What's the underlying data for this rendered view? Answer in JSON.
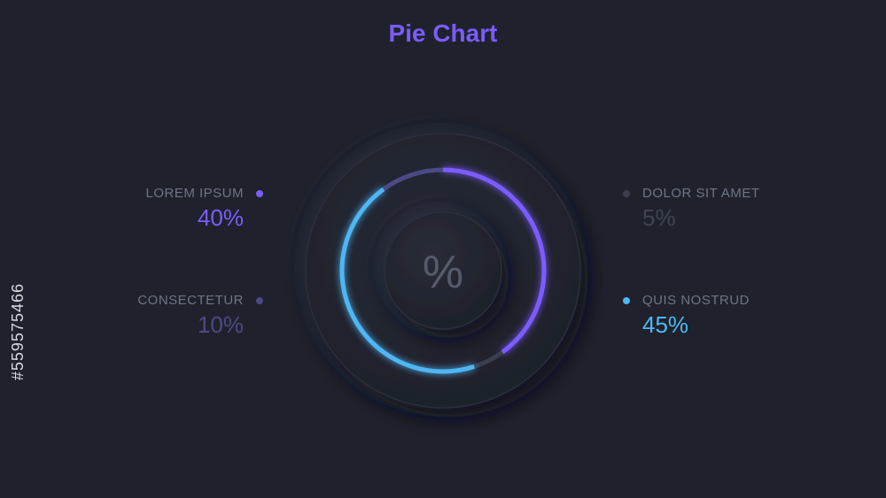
{
  "chart_data": {
    "type": "pie",
    "title": "Pie Chart",
    "center_label": "%",
    "slices": [
      {
        "name": "LOREM IPSUM",
        "value": 40,
        "display": "40%",
        "color": "#7b5cff"
      },
      {
        "name": "DOLOR SIT AMET",
        "value": 5,
        "display": "5%",
        "color": "#3a3f4e"
      },
      {
        "name": "QUIS NOSTRUD",
        "value": 45,
        "display": "45%",
        "color": "#4fb6f5"
      },
      {
        "name": "CONSECTETUR",
        "value": 10,
        "display": "10%",
        "color": "#4c4a86"
      }
    ]
  },
  "colors": {
    "background": "#1f222c",
    "title": "#7b5cff",
    "label_muted": "#6e7588"
  },
  "watermark": {
    "stock_id": "#559575466"
  }
}
